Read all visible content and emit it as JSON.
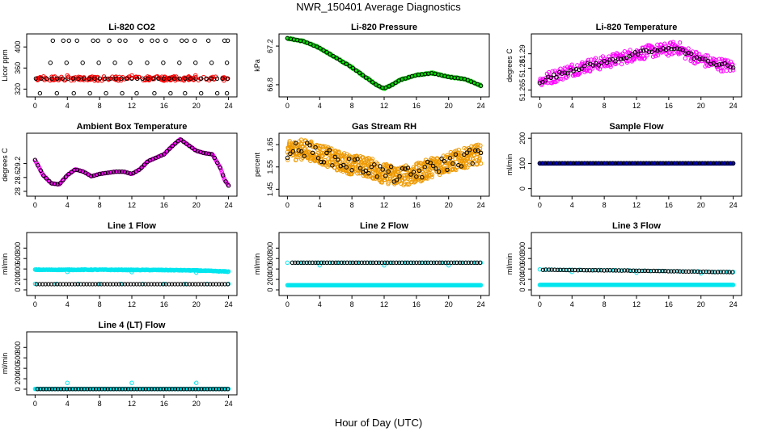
{
  "title": "NWR_150401  Average Diagnostics",
  "xlabel": "Hour of Day (UTC)",
  "colors": {
    "black": "#000000",
    "red": "#ff0000",
    "magenta": "#ff00ff",
    "green": "#00dd00",
    "orange": "#ee9900",
    "cyan": "#00e5ee",
    "blue": "#0000cc"
  },
  "chart_data": [
    {
      "type": "scatter",
      "title": "Li-820 CO2",
      "ylabel": "Licor ppm",
      "xlim": [
        0,
        24
      ],
      "ylim": [
        310,
        420
      ],
      "xticks": [
        0,
        4,
        8,
        12,
        16,
        20,
        24
      ],
      "yticks": [
        320,
        360,
        400
      ],
      "series": [
        {
          "color": "red",
          "kind": "band",
          "x0": 0,
          "x1": 24,
          "y0": 336,
          "y1": 344,
          "density": 200
        },
        {
          "color": "black",
          "kind": "flat",
          "x0": 0.1,
          "x1": 23.9,
          "y": 340,
          "n": 37
        },
        {
          "color": "black",
          "kind": "points",
          "x": [
            2.2,
            3.5,
            4.2,
            5.2,
            7.2,
            7.8,
            9.2,
            10.5,
            11.2,
            13.2,
            14.5,
            15.2,
            16.2,
            18.2,
            18.8,
            19.8,
            21.5,
            23.5,
            23.9,
            0.6,
            2.7,
            4.8,
            6.8,
            8.8,
            10.8,
            12.6,
            14.8,
            16.8,
            18.6,
            20.6,
            22.6,
            23.8,
            1.9,
            3.9,
            5.9,
            7.9,
            9.9,
            11.8,
            13.9,
            15.9,
            17.9,
            19.9,
            21.9,
            23.8
          ],
          "y": [
            412,
            412,
            412,
            412,
            412,
            412,
            412,
            412,
            412,
            412,
            412,
            412,
            412,
            412,
            412,
            412,
            412,
            412,
            412,
            312,
            312,
            312,
            312,
            312,
            312,
            312,
            312,
            312,
            312,
            312,
            312,
            312,
            370,
            370,
            370,
            370,
            370,
            370,
            370,
            370,
            370,
            370,
            370,
            370
          ]
        },
        {
          "color": "red",
          "kind": "points",
          "x": [
            4.0,
            12.0,
            19.9
          ],
          "y": [
            346,
            346,
            346
          ]
        }
      ]
    },
    {
      "type": "scatter",
      "title": "Li-820 Pressure",
      "ylabel": "kPa",
      "xlim": [
        0,
        24
      ],
      "ylim": [
        66.7,
        67.3
      ],
      "xticks": [
        0,
        4,
        8,
        12,
        16,
        20,
        24
      ],
      "yticks": [
        66.8,
        67.2
      ],
      "series": [
        {
          "color": "green",
          "kind": "curve",
          "noise": 0.006,
          "density": 260,
          "x": [
            0,
            2,
            4,
            6,
            8,
            10,
            11,
            12,
            13,
            14,
            16,
            18,
            20,
            22,
            24
          ],
          "y": [
            67.28,
            67.25,
            67.18,
            67.08,
            66.98,
            66.86,
            66.8,
            66.76,
            66.8,
            66.85,
            66.9,
            66.92,
            66.88,
            66.86,
            66.79
          ]
        },
        {
          "color": "black",
          "kind": "curve",
          "noise": 0.0,
          "density": 60,
          "x": [
            0,
            2,
            4,
            6,
            8,
            10,
            11,
            12,
            13,
            14,
            16,
            18,
            20,
            22,
            24
          ],
          "y": [
            67.28,
            67.25,
            67.18,
            67.08,
            66.98,
            66.86,
            66.8,
            66.76,
            66.8,
            66.85,
            66.9,
            66.92,
            66.88,
            66.86,
            66.79
          ]
        }
      ]
    },
    {
      "type": "scatter",
      "title": "Li-820 Temperature",
      "ylabel": "degrees C",
      "xlim": [
        0,
        24
      ],
      "ylim": [
        51.262,
        51.302
      ],
      "xticks": [
        0,
        4,
        8,
        12,
        16,
        20,
        24
      ],
      "yticks": [
        51.265,
        51.28,
        51.29
      ],
      "series": [
        {
          "color": "magenta",
          "kind": "curve",
          "noise": 0.0045,
          "density": 320,
          "x": [
            0,
            2,
            4,
            6,
            8,
            10,
            12,
            14,
            16,
            17,
            18,
            20,
            22,
            24
          ],
          "y": [
            51.271,
            51.275,
            51.279,
            51.282,
            51.284,
            51.287,
            51.29,
            51.292,
            51.293,
            51.295,
            51.291,
            51.286,
            51.283,
            51.281
          ]
        },
        {
          "color": "black",
          "kind": "curve",
          "noise": 0.0015,
          "density": 70,
          "x": [
            0,
            2,
            4,
            6,
            8,
            10,
            12,
            14,
            16,
            17,
            18,
            20,
            22,
            24
          ],
          "y": [
            51.271,
            51.275,
            51.279,
            51.282,
            51.284,
            51.287,
            51.29,
            51.292,
            51.293,
            51.295,
            51.291,
            51.286,
            51.283,
            51.281
          ]
        }
      ]
    },
    {
      "type": "scatter",
      "title": "Ambient Box Temperature",
      "ylabel": "degrees C",
      "xlim": [
        0,
        24
      ],
      "ylim": [
        27.9,
        30.4
      ],
      "xticks": [
        0,
        4,
        8,
        12,
        16,
        20,
        24
      ],
      "yticks": [
        28.0,
        28.6,
        29.2
      ],
      "series": [
        {
          "color": "magenta",
          "kind": "curve",
          "noise": 0.0,
          "density": 260,
          "x": [
            0,
            1,
            2,
            3,
            4,
            5,
            6,
            7,
            8,
            9,
            10,
            11,
            12,
            13,
            14,
            15,
            16,
            17,
            18,
            19,
            20,
            21,
            22,
            23,
            23.5,
            24
          ],
          "y": [
            29.35,
            28.7,
            28.35,
            28.3,
            28.7,
            28.95,
            28.85,
            28.65,
            28.75,
            28.8,
            28.85,
            28.85,
            28.75,
            28.95,
            29.3,
            29.45,
            29.6,
            29.95,
            30.25,
            30.0,
            29.75,
            29.65,
            29.6,
            29.0,
            28.5,
            28.25
          ]
        },
        {
          "color": "black",
          "kind": "curve",
          "noise": 0.0,
          "density": 70,
          "x": [
            0,
            1,
            2,
            3,
            4,
            5,
            6,
            7,
            8,
            9,
            10,
            11,
            12,
            13,
            14,
            15,
            16,
            17,
            18,
            19,
            20,
            21,
            22,
            23,
            23.5,
            24
          ],
          "y": [
            29.35,
            28.7,
            28.35,
            28.3,
            28.7,
            28.95,
            28.85,
            28.65,
            28.75,
            28.8,
            28.85,
            28.85,
            28.75,
            28.95,
            29.3,
            29.45,
            29.6,
            29.95,
            30.25,
            30.0,
            29.75,
            29.65,
            29.6,
            29.0,
            28.5,
            28.25
          ]
        }
      ]
    },
    {
      "type": "scatter",
      "title": "Gas Stream RH",
      "ylabel": "percent",
      "xlim": [
        0,
        24
      ],
      "ylim": [
        1.43,
        1.69
      ],
      "xticks": [
        0,
        4,
        8,
        12,
        16,
        20,
        24
      ],
      "yticks": [
        1.45,
        1.55,
        1.65
      ],
      "series": [
        {
          "color": "orange",
          "kind": "curve",
          "noise": 0.045,
          "density": 700,
          "x": [
            0,
            2,
            4,
            6,
            8,
            10,
            12,
            14,
            16,
            18,
            20,
            22,
            24
          ],
          "y": [
            1.62,
            1.63,
            1.61,
            1.58,
            1.56,
            1.55,
            1.52,
            1.51,
            1.52,
            1.55,
            1.57,
            1.59,
            1.61
          ]
        },
        {
          "color": "black",
          "kind": "curve",
          "noise": 0.035,
          "density": 70,
          "x": [
            0,
            2,
            4,
            6,
            8,
            10,
            12,
            14,
            16,
            18,
            20,
            22,
            24
          ],
          "y": [
            1.62,
            1.63,
            1.61,
            1.58,
            1.56,
            1.55,
            1.52,
            1.51,
            1.52,
            1.55,
            1.57,
            1.59,
            1.61
          ]
        }
      ]
    },
    {
      "type": "scatter",
      "title": "Sample Flow",
      "ylabel": "ml/min",
      "xlim": [
        0,
        24
      ],
      "ylim": [
        -20,
        210
      ],
      "xticks": [
        0,
        4,
        8,
        12,
        16,
        20,
        24
      ],
      "yticks": [
        0,
        100,
        200
      ],
      "series": [
        {
          "color": "blue",
          "kind": "flat",
          "x0": 0,
          "x1": 24,
          "y": 100,
          "n": 260
        },
        {
          "color": "black",
          "kind": "flat",
          "x0": 0,
          "x1": 24,
          "y": 101,
          "n": 70
        }
      ]
    },
    {
      "type": "scatter",
      "title": "Line 1 Flow",
      "ylabel": "ml/min",
      "xlim": [
        0,
        24
      ],
      "ylim": [
        -60,
        1050
      ],
      "xticks": [
        0,
        4,
        8,
        12,
        16,
        20,
        24
      ],
      "yticks": [
        0,
        200,
        400,
        600,
        800
      ],
      "series": [
        {
          "color": "cyan",
          "kind": "curve",
          "noise": 6,
          "density": 260,
          "x": [
            0,
            8,
            16,
            20,
            24
          ],
          "y": [
            385,
            385,
            380,
            372,
            350
          ]
        },
        {
          "color": "cyan",
          "kind": "points",
          "x": [
            4.0,
            12.0,
            20.0
          ],
          "y": [
            345,
            340,
            330
          ]
        },
        {
          "color": "cyan",
          "kind": "flat",
          "x0": 0,
          "x1": 24,
          "y": 115,
          "n": 10
        },
        {
          "color": "black",
          "kind": "flat",
          "x0": 0.2,
          "x1": 23.9,
          "y": 110,
          "n": 66
        }
      ]
    },
    {
      "type": "scatter",
      "title": "Line 2 Flow",
      "ylabel": "ml/min",
      "xlim": [
        0,
        24
      ],
      "ylim": [
        -60,
        1050
      ],
      "xticks": [
        0,
        4,
        8,
        12,
        16,
        20,
        24
      ],
      "yticks": [
        0,
        200,
        400,
        600,
        800
      ],
      "series": [
        {
          "color": "cyan",
          "kind": "flat",
          "x0": 0,
          "x1": 24,
          "y": 90,
          "n": 260
        },
        {
          "color": "cyan",
          "kind": "flat",
          "x0": 0,
          "x1": 24,
          "y": 520,
          "n": 40
        },
        {
          "color": "cyan",
          "kind": "points",
          "x": [
            4.0,
            12.0,
            20.0
          ],
          "y": [
            470,
            470,
            470
          ]
        },
        {
          "color": "black",
          "kind": "flat",
          "x0": 0.6,
          "x1": 23.9,
          "y": 520,
          "n": 66
        }
      ]
    },
    {
      "type": "scatter",
      "title": "Line 3 Flow",
      "ylabel": "ml/min",
      "xlim": [
        0,
        24
      ],
      "ylim": [
        -60,
        1050
      ],
      "xticks": [
        0,
        4,
        8,
        12,
        16,
        20,
        24
      ],
      "yticks": [
        0,
        200,
        400,
        600,
        800
      ],
      "series": [
        {
          "color": "cyan",
          "kind": "flat",
          "x0": 0,
          "x1": 24,
          "y": 95,
          "n": 260
        },
        {
          "color": "cyan",
          "kind": "curve",
          "noise": 4,
          "density": 40,
          "x": [
            0,
            12,
            24
          ],
          "y": [
            390,
            370,
            340
          ]
        },
        {
          "color": "cyan",
          "kind": "points",
          "x": [
            4.0,
            12.0,
            20.0
          ],
          "y": [
            345,
            330,
            315
          ]
        },
        {
          "color": "black",
          "kind": "curve",
          "noise": 3,
          "density": 66,
          "x": [
            0.4,
            12,
            23.9
          ],
          "y": [
            385,
            368,
            338
          ]
        }
      ]
    },
    {
      "type": "scatter",
      "title": "Line 4 (LT) Flow",
      "ylabel": "ml/min",
      "xlim": [
        0,
        24
      ],
      "ylim": [
        -60,
        1050
      ],
      "xticks": [
        0,
        4,
        8,
        12,
        16,
        20,
        24
      ],
      "yticks": [
        0,
        200,
        400,
        600,
        800
      ],
      "series": [
        {
          "color": "cyan",
          "kind": "flat",
          "x0": 0,
          "x1": 24,
          "y": 5,
          "n": 200
        },
        {
          "color": "cyan",
          "kind": "points",
          "x": [
            4.0,
            12.0,
            20.0
          ],
          "y": [
            120,
            120,
            120
          ]
        },
        {
          "color": "black",
          "kind": "flat",
          "x0": 0.3,
          "x1": 23.9,
          "y": 3,
          "n": 66
        }
      ]
    }
  ]
}
